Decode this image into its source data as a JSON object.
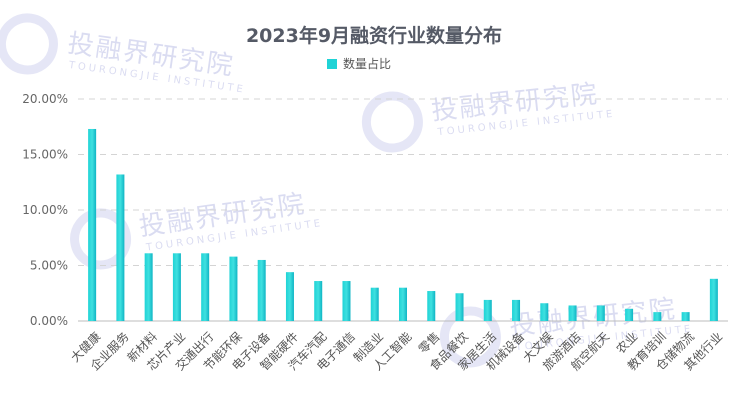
{
  "chart_data": {
    "type": "bar",
    "title": "2023年9月融资行业数量分布",
    "series": [
      {
        "name": "数量占比",
        "values": [
          17.3,
          13.2,
          6.1,
          6.1,
          6.1,
          5.8,
          5.5,
          4.4,
          3.6,
          3.6,
          3.0,
          3.0,
          2.7,
          2.5,
          1.9,
          1.9,
          1.6,
          1.4,
          1.4,
          1.1,
          0.8,
          0.8,
          3.8
        ]
      }
    ],
    "categories": [
      "大健康",
      "企业服务",
      "新材料",
      "芯片产业",
      "交通出行",
      "节能环保",
      "电子设备",
      "智能硬件",
      "汽车汽配",
      "电子通信",
      "制造业",
      "人工智能",
      "零售",
      "食品餐饮",
      "家居生活",
      "机械设备",
      "大文娱",
      "旅游酒店",
      "航空航天",
      "农业",
      "教育培训",
      "仓储物流",
      "其他行业"
    ],
    "y_ticks": [
      "0.00%",
      "5.00%",
      "10.00%",
      "15.00%",
      "20.00%"
    ],
    "ylim": [
      0,
      20
    ],
    "grid": true,
    "legend_position": "top-center",
    "bar_color_top": "#1fd3d6",
    "bar_color_bottom": "#0fb5c4"
  },
  "watermark": {
    "text": "投融界研究院",
    "sub": "TOURONGJIE INSTITUTE"
  }
}
